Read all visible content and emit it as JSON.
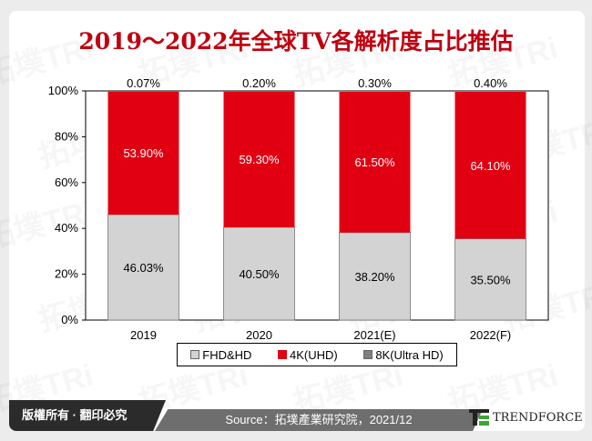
{
  "chart_data": {
    "type": "bar",
    "stacked": true,
    "title": "2019～2022年全球TV各解析度占比推估",
    "categories": [
      "2019",
      "2020",
      "2021(E)",
      "2022(F)"
    ],
    "series": [
      {
        "name": "FHD&HD",
        "color": "#d3d3d3",
        "values": [
          46.03,
          40.5,
          38.2,
          35.5
        ],
        "labels": [
          "46.03%",
          "40.50%",
          "38.20%",
          "35.50%"
        ]
      },
      {
        "name": "4K(UHD)",
        "color": "#e00012",
        "values": [
          53.9,
          59.3,
          61.5,
          64.1
        ],
        "labels": [
          "53.90%",
          "59.30%",
          "61.50%",
          "64.10%"
        ]
      },
      {
        "name": "8K(Ultra HD)",
        "color": "#7f7f7f",
        "values": [
          0.07,
          0.2,
          0.3,
          0.4
        ],
        "labels": [
          "0.07%",
          "0.20%",
          "0.30%",
          "0.40%"
        ]
      }
    ],
    "yticks": [
      "0%",
      "20%",
      "40%",
      "60%",
      "80%",
      "100%"
    ],
    "ylim": [
      0,
      100
    ],
    "grid": false,
    "legend": "bottom"
  },
  "footer": {
    "copyright": "版權所有 · 翻印必究",
    "source": "Source：拓墣產業研究院，2021/12",
    "brand": "TRENDFORCE"
  },
  "watermark": "拓墣TRi TOPOLOGY RESEARCH INSTITUTE"
}
